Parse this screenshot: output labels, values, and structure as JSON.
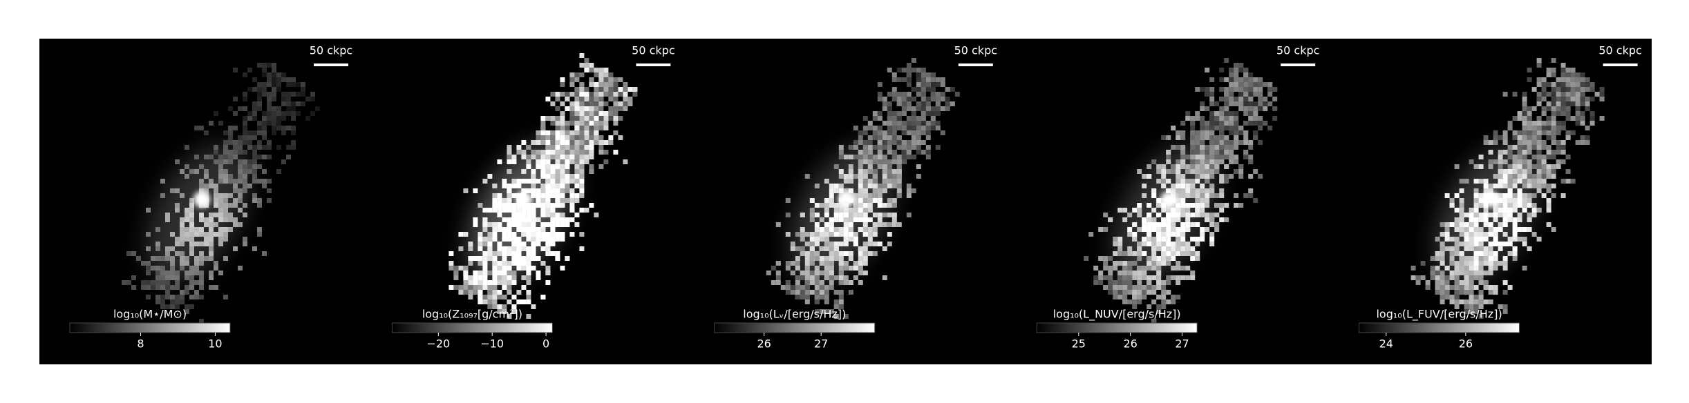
{
  "chart_data": {
    "type": "image-grid",
    "panels": [
      {
        "colorbar_label": "log₁₀(M⋆/M⊙)",
        "scalebar": "50 ckpc",
        "clim": [
          6.1,
          10.4
        ],
        "ticks": [
          8,
          10
        ]
      },
      {
        "colorbar_label": "log₁₀(Z₁₀₉₇[g/cm²])",
        "scalebar": "50 ckpc",
        "clim": [
          -28.6,
          1.2
        ],
        "ticks": [
          {
            "value": -20,
            "label": "−20"
          },
          {
            "value": -10,
            "label": "−10"
          },
          0
        ]
      },
      {
        "colorbar_label": "log₁₀(Lᵥ/[erg/s/Hz])",
        "scalebar": "50 ckpc",
        "clim": [
          25.13,
          27.94
        ],
        "ticks": [
          26,
          27
        ]
      },
      {
        "colorbar_label": "log₁₀(L_NUV/[erg/s/Hz])",
        "scalebar": "50 ckpc",
        "clim": [
          24.19,
          27.29
        ],
        "ticks": [
          25,
          26,
          27
        ]
      },
      {
        "colorbar_label": "log₁₀(L_FUV/[erg/s/Hz])",
        "scalebar": "50 ckpc",
        "clim": [
          23.32,
          27.35
        ],
        "ticks": [
          24,
          26
        ]
      }
    ]
  }
}
